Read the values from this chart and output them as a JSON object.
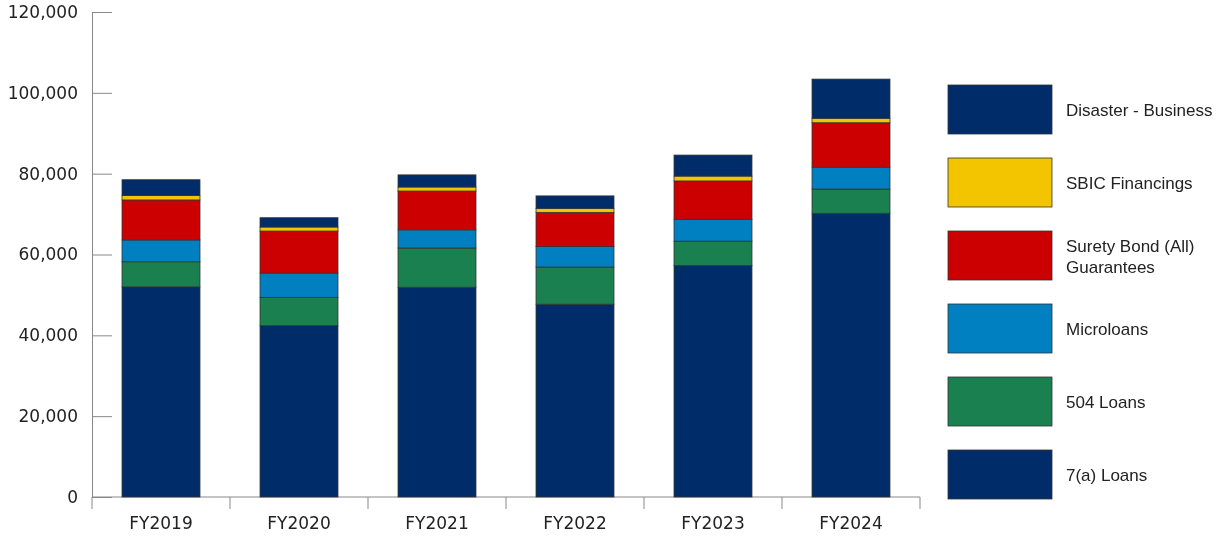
{
  "chart_data": {
    "type": "bar",
    "stacked": true,
    "categories": [
      "FY2019",
      "FY2020",
      "FY2021",
      "FY2022",
      "FY2023",
      "FY2024"
    ],
    "series": [
      {
        "name": "7(a) Loans",
        "color": "#002d6a",
        "values": [
          52000,
          42400,
          51900,
          47700,
          57300,
          70200
        ]
      },
      {
        "name": "504 Loans",
        "color": "#1b8050",
        "values": [
          6200,
          7000,
          9700,
          9200,
          6000,
          6000
        ]
      },
      {
        "name": "Microloans",
        "color": "#0080c0",
        "values": [
          5400,
          6000,
          4500,
          5100,
          5400,
          5400
        ]
      },
      {
        "name": "Surety Bond (All) Guarantees",
        "color": "#cc0000",
        "values": [
          9900,
          10400,
          9600,
          8400,
          9500,
          11000
        ]
      },
      {
        "name": "SBIC Financings",
        "color": "#f2c500",
        "values": [
          1100,
          1000,
          1000,
          1000,
          1200,
          1100
        ]
      },
      {
        "name": "Disaster - Business",
        "color": "#002d6a",
        "values": [
          3900,
          2300,
          3000,
          3100,
          5200,
          9700
        ]
      }
    ],
    "ylim": [
      0,
      120000
    ],
    "yticks": [
      {
        "value": 0,
        "label": "0"
      },
      {
        "value": 20000,
        "label": "20,000"
      },
      {
        "value": 40000,
        "label": "40,000"
      },
      {
        "value": 60000,
        "label": "60,000"
      },
      {
        "value": 80000,
        "label": "80,000"
      },
      {
        "value": 100000,
        "label": "100,000"
      },
      {
        "value": 120000,
        "label": "120,000"
      }
    ],
    "grid": false,
    "legend": "right"
  }
}
